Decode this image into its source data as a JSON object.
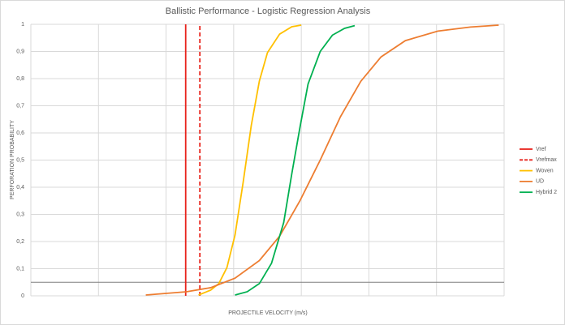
{
  "chart_data": {
    "type": "line",
    "title": "Ballistic Performance - Logistic Regression Analysis",
    "x_label": "PROJECTILE VELOCITY (m/s)",
    "y_label": "PERFORATION PROBABILITY",
    "xlim": [
      0,
      7
    ],
    "ylim": [
      0,
      1
    ],
    "yticks": [
      0,
      {
        "value": 0.1,
        "label": "0,1"
      },
      {
        "value": 0.2,
        "label": "0,2"
      },
      {
        "value": 0.3,
        "label": "0,3"
      },
      {
        "value": 0.4,
        "label": "0,4"
      },
      {
        "value": 0.5,
        "label": "0,5"
      },
      {
        "value": 0.6,
        "label": "0,6"
      },
      {
        "value": 0.7,
        "label": "0,7"
      },
      {
        "value": 0.8,
        "label": "0,8"
      },
      {
        "value": 0.9,
        "label": "0,9"
      },
      1
    ],
    "grid": true,
    "reference_line": 0.05,
    "legend": "right",
    "series": [
      {
        "name": "Vref",
        "color": "#e8231c",
        "dash": false,
        "x": [
          2.29,
          2.29
        ],
        "values": [
          0,
          1
        ]
      },
      {
        "name": "Vrefmax",
        "color": "#e8231c",
        "dash": true,
        "x": [
          2.5,
          2.5
        ],
        "values": [
          0,
          1
        ]
      },
      {
        "name": "Woven",
        "color": "#ffc000",
        "dash": false,
        "x": [
          2.48,
          2.66,
          2.78,
          2.9,
          3.02,
          3.14,
          3.26,
          3.38,
          3.5,
          3.68,
          3.86,
          4.0
        ],
        "values": [
          0.003,
          0.021,
          0.045,
          0.104,
          0.224,
          0.418,
          0.627,
          0.791,
          0.896,
          0.964,
          0.991,
          0.997
        ]
      },
      {
        "name": "UD",
        "color": "#ed7d31",
        "dash": false,
        "x": [
          1.7,
          2.3,
          2.66,
          3.02,
          3.38,
          3.68,
          3.98,
          4.28,
          4.58,
          4.88,
          5.18,
          5.54,
          6.02,
          6.5,
          6.92
        ],
        "values": [
          0.003,
          0.015,
          0.03,
          0.065,
          0.13,
          0.22,
          0.35,
          0.5,
          0.66,
          0.79,
          0.88,
          0.94,
          0.975,
          0.99,
          0.997
        ]
      },
      {
        "name": "Hybrid 2",
        "color": "#00b050",
        "dash": false,
        "x": [
          3.02,
          3.2,
          3.38,
          3.56,
          3.74,
          3.86,
          3.98,
          4.1,
          4.28,
          4.46,
          4.64,
          4.79
        ],
        "values": [
          0.003,
          0.015,
          0.045,
          0.12,
          0.27,
          0.45,
          0.62,
          0.78,
          0.9,
          0.96,
          0.985,
          0.995
        ]
      }
    ]
  }
}
